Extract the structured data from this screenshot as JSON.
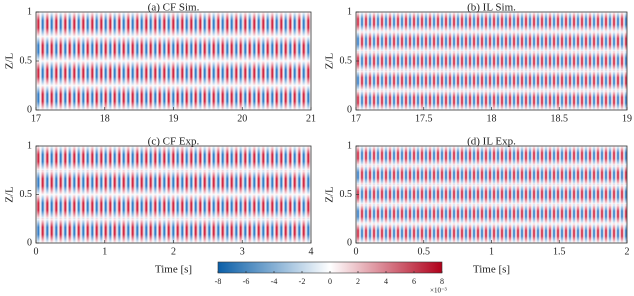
{
  "chart_data": [
    {
      "type": "heatmap",
      "title": "(a) CF Sim.",
      "ylabel": "Z/L",
      "xlim": [
        17,
        21
      ],
      "xticks": [
        17,
        18,
        19,
        20,
        21
      ],
      "ylim": [
        0,
        1
      ],
      "yticks": [
        0,
        0.5,
        1
      ]
    },
    {
      "type": "heatmap",
      "title": "(b) IL Sim.",
      "ylabel": "Z/L",
      "xlim": [
        17,
        19
      ],
      "xticks": [
        17,
        17.5,
        18,
        18.5,
        19
      ],
      "ylim": [
        0,
        1
      ],
      "yticks": [
        0,
        0.5,
        1
      ]
    },
    {
      "type": "heatmap",
      "title": "(c) CF Exp.",
      "ylabel": "Z/L",
      "xlabel": "Time [s]",
      "xlim": [
        0,
        4
      ],
      "xticks": [
        0,
        1,
        2,
        3,
        4
      ],
      "ylim": [
        0,
        1
      ],
      "yticks": [
        0,
        0.5,
        1
      ]
    },
    {
      "type": "heatmap",
      "title": "(d) IL Exp.",
      "ylabel": "Z/L",
      "xlabel": "Time [s]",
      "xlim": [
        0,
        2
      ],
      "xticks": [
        0,
        0.5,
        1,
        1.5,
        2
      ],
      "ylim": [
        0,
        1
      ],
      "yticks": [
        0,
        0.5,
        1
      ]
    },
    {
      "type": "colorbar",
      "lim": [
        -8,
        8
      ],
      "ticks": [
        -8,
        -6,
        -4,
        -2,
        0,
        2,
        4,
        6,
        8
      ],
      "exponent_label": "×10⁻³"
    }
  ]
}
